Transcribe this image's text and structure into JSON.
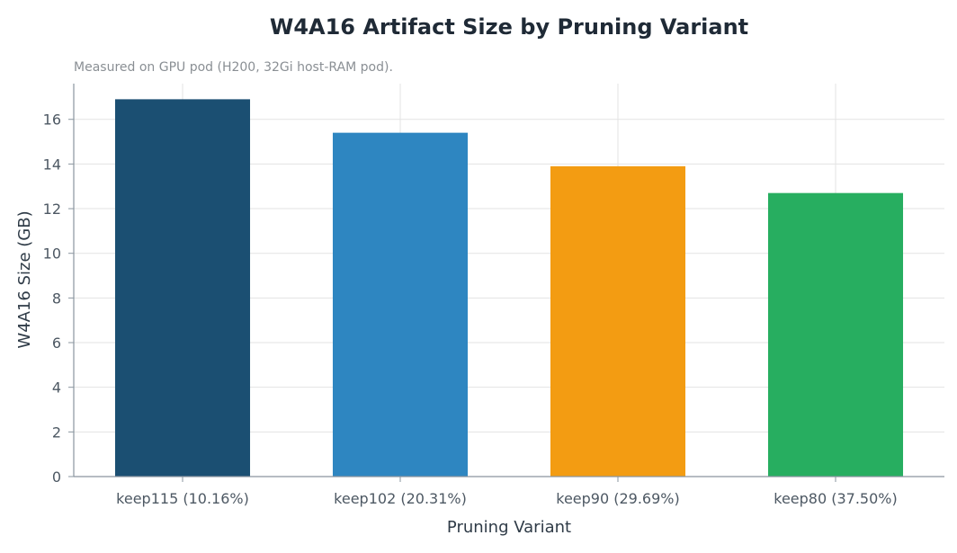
{
  "chart_data": {
    "type": "bar",
    "title": "W4A16 Artifact Size by Pruning Variant",
    "subtitle": "Measured on GPU pod (H200, 32Gi host-RAM pod).",
    "xlabel": "Pruning Variant",
    "ylabel": "W4A16 Size (GB)",
    "categories": [
      "keep115 (10.16%)",
      "keep102 (20.31%)",
      "keep90 (29.69%)",
      "keep80 (37.50%)"
    ],
    "values": [
      16.9,
      15.4,
      13.9,
      12.7
    ],
    "colors": [
      "#1b4f72",
      "#2e86c1",
      "#f39c12",
      "#27ae60"
    ],
    "ylim": [
      0,
      17.6
    ],
    "yticks": [
      0,
      2,
      4,
      6,
      8,
      10,
      12,
      14,
      16
    ],
    "grid": true,
    "legend": "none"
  }
}
